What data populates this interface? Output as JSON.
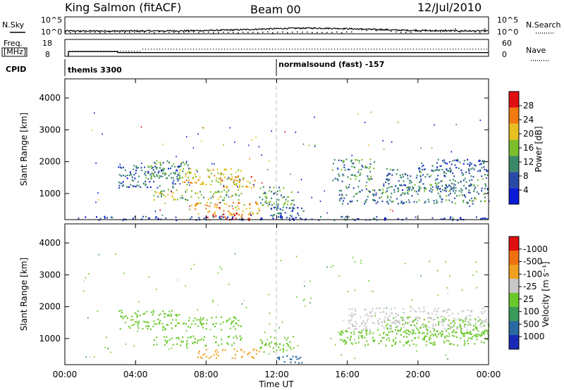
{
  "header": {
    "station": "King Salmon (fitACF)",
    "beam": "Beam 00",
    "date": "12/Jul/2010"
  },
  "top_panels": {
    "nsky_label": "N.Sky",
    "nsearch_label": "N.Search",
    "noise_ticks": [
      "10^5",
      "10^0"
    ],
    "freq_label_line1": "Freq.",
    "freq_label_line2": "[MHz]",
    "freq_ticks": [
      "18",
      "8"
    ],
    "nave_label": "Nave",
    "nave_ticks": [
      "60",
      "0"
    ],
    "cpid_label": "CPID",
    "cpid_segments": [
      {
        "start_hour": 0.2,
        "label": "themis 3300"
      },
      {
        "start_hour": 12.0,
        "label": "normalsound (fast) -157"
      }
    ],
    "freq_steps": [
      {
        "start_hour": 0.2,
        "end_hour": 3.0,
        "mhz": 10.8
      },
      {
        "start_hour": 3.0,
        "end_hour": 24.0,
        "mhz": 10.2
      }
    ],
    "nave_level": 22
  },
  "chart_data": [
    {
      "type": "heatmap",
      "panel": "power",
      "ylabel": "Slant Range [km]",
      "yticks": [
        1000,
        2000,
        3000,
        4000
      ],
      "ylim": [
        180,
        4600
      ],
      "xlim": [
        0,
        24
      ],
      "colorbar_label": "Power [dB]",
      "colorbar_ticks": [
        "4",
        "8",
        "12",
        "16",
        "20",
        "24",
        "28"
      ],
      "colors": [
        "#0a1ad6",
        "#2a4aa8",
        "#3a8a6a",
        "#7cbf2a",
        "#e8c020",
        "#f07a10",
        "#e01010"
      ],
      "value_range": [
        0,
        30
      ],
      "bands": [
        {
          "t0": 3.0,
          "t1": 6.5,
          "r0": 1200,
          "r1": 1900,
          "v": 8
        },
        {
          "t0": 4.5,
          "t1": 7.0,
          "r0": 1500,
          "r1": 2050,
          "v": 12
        },
        {
          "t0": 6.5,
          "t1": 10.0,
          "r0": 1300,
          "r1": 1800,
          "v": 18
        },
        {
          "t0": 8.5,
          "t1": 11.0,
          "r0": 1200,
          "r1": 1550,
          "v": 21
        },
        {
          "t0": 5.0,
          "t1": 10.0,
          "r0": 800,
          "r1": 1150,
          "v": 14
        },
        {
          "t0": 7.0,
          "t1": 11.0,
          "r0": 350,
          "r1": 750,
          "v": 21
        },
        {
          "t0": 8.0,
          "t1": 10.5,
          "r0": 180,
          "r1": 400,
          "v": 27
        },
        {
          "t0": 11.0,
          "t1": 13.0,
          "r0": 550,
          "r1": 1250,
          "v": 12
        },
        {
          "t0": 11.5,
          "t1": 13.5,
          "r0": 200,
          "r1": 600,
          "v": 8
        },
        {
          "t0": 15.0,
          "t1": 17.5,
          "r0": 1400,
          "r1": 2100,
          "v": 11
        },
        {
          "t0": 15.5,
          "t1": 24.0,
          "r0": 700,
          "r1": 1300,
          "v": 10
        },
        {
          "t0": 18.0,
          "t1": 24.0,
          "r0": 1100,
          "r1": 1800,
          "v": 9
        },
        {
          "t0": 20.0,
          "t1": 24.0,
          "r0": 1700,
          "r1": 2100,
          "v": 7
        },
        {
          "t0": 0.5,
          "t1": 24.0,
          "r0": 180,
          "r1": 300,
          "v": 5
        }
      ]
    },
    {
      "type": "heatmap",
      "panel": "velocity",
      "ylabel": "Slant Range [km]",
      "yticks": [
        1000,
        2000,
        3000,
        4000
      ],
      "ylim": [
        180,
        4600
      ],
      "xlim": [
        0,
        24
      ],
      "xticks": [
        "00:00",
        "04:00",
        "08:00",
        "12:00",
        "16:00",
        "20:00",
        "00:00"
      ],
      "xlabel": "Time UT",
      "colorbar_label": "Velocity [m s⁻¹]",
      "colorbar_ticks": [
        "1000",
        "500",
        "100",
        "25",
        "-25",
        "-100",
        "-500",
        "-1000"
      ],
      "colors": [
        "#1a2ab8",
        "#2a6aa0",
        "#3a9a5a",
        "#6ac82a",
        "#c8c8c8",
        "#f0a020",
        "#f07010",
        "#e01010"
      ],
      "bands": [
        {
          "t0": 3.0,
          "t1": 6.5,
          "r0": 1300,
          "r1": 1900,
          "v": 0
        },
        {
          "t0": 6.5,
          "t1": 10.0,
          "r0": 1300,
          "r1": 1700,
          "v": 0
        },
        {
          "t0": 5.0,
          "t1": 10.0,
          "r0": 800,
          "r1": 1100,
          "v": 0
        },
        {
          "t0": 7.5,
          "t1": 11.0,
          "r0": 400,
          "r1": 700,
          "v": -200
        },
        {
          "t0": 11.0,
          "t1": 13.0,
          "r0": 600,
          "r1": 1100,
          "v": 0
        },
        {
          "t0": 12.0,
          "t1": 13.5,
          "r0": 250,
          "r1": 500,
          "v": 150
        },
        {
          "t0": 15.5,
          "t1": 24.0,
          "r0": 800,
          "r1": 1300,
          "v": 0
        },
        {
          "t0": 18.0,
          "t1": 24.0,
          "r0": 1100,
          "r1": 1700,
          "v": 0
        },
        {
          "t0": 16.0,
          "t1": 24.0,
          "r0": 1300,
          "r1": 2000,
          "v": -60
        }
      ]
    }
  ]
}
